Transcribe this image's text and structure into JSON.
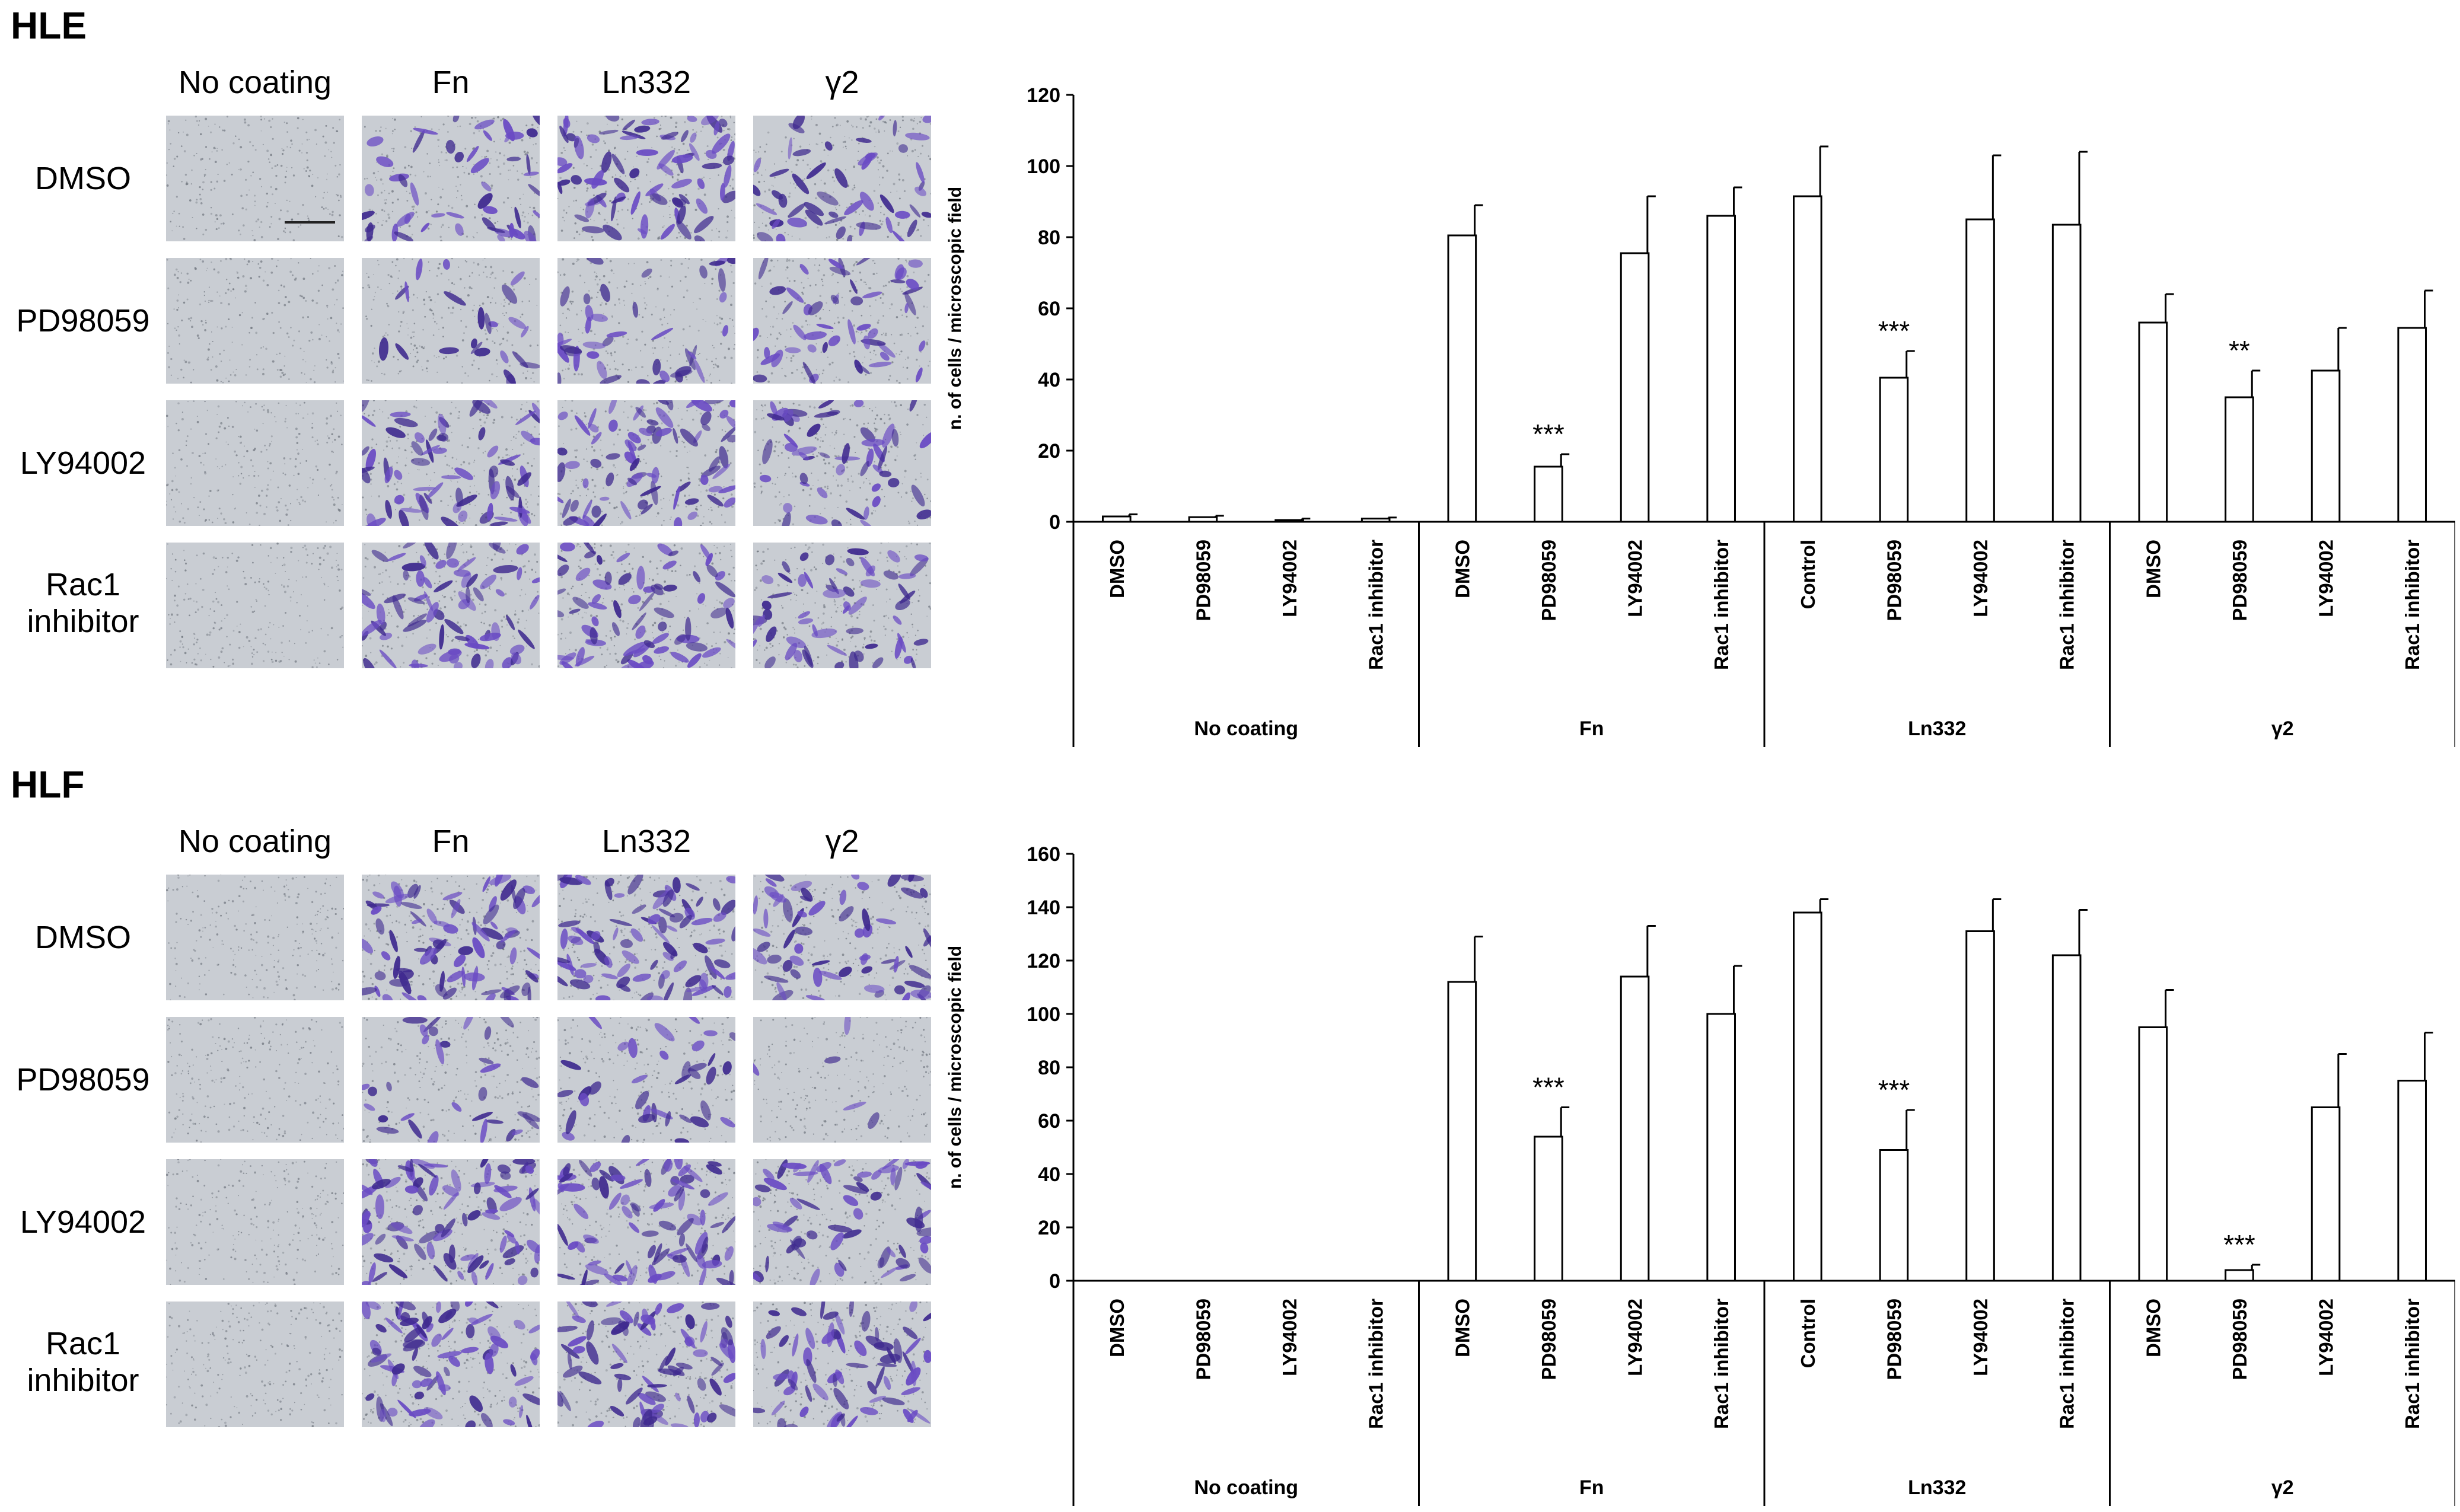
{
  "panels": [
    {
      "label": "HLE",
      "columns": [
        "No coating",
        "Fn",
        "Ln332",
        "γ2"
      ],
      "rows": [
        "DMSO",
        "PD98059",
        "LY94002",
        "Rac1\ninhibitor"
      ],
      "density": [
        [
          0.0,
          0.55,
          0.85,
          0.55
        ],
        [
          0.0,
          0.25,
          0.45,
          0.55
        ],
        [
          0.0,
          0.75,
          0.85,
          0.55
        ],
        [
          0.0,
          0.8,
          0.8,
          0.65
        ]
      ],
      "chart_data": {
        "type": "bar",
        "ylabel": "n. of cells / microscopic field",
        "ylim": [
          0,
          120
        ],
        "yticks": [
          0,
          20,
          40,
          60,
          80,
          100,
          120
        ],
        "groups": [
          {
            "name": "No coating",
            "categories": [
              "DMSO",
              "PD98059",
              "LY94002",
              "Rac1 inhibitor"
            ],
            "values": [
              1.5,
              1.3,
              0.5,
              0.9
            ],
            "errors": [
              0.6,
              0.4,
              0.4,
              0.3
            ],
            "sig": [
              "",
              "",
              "",
              ""
            ]
          },
          {
            "name": "Fn",
            "categories": [
              "DMSO",
              "PD98059",
              "LY94002",
              "Rac1 inhibitor"
            ],
            "values": [
              80.5,
              15.5,
              75.5,
              86
            ],
            "errors": [
              8.5,
              3.5,
              16,
              8
            ],
            "sig": [
              "",
              "***",
              "",
              ""
            ]
          },
          {
            "name": "Ln332",
            "categories": [
              "Control",
              "PD98059",
              "LY94002",
              "Rac1 inhibitor"
            ],
            "values": [
              91.5,
              40.5,
              85,
              83.5
            ],
            "errors": [
              14,
              7.5,
              18,
              20.5
            ],
            "sig": [
              "",
              "***",
              "",
              ""
            ]
          },
          {
            "name": "γ2",
            "categories": [
              "DMSO",
              "PD98059",
              "LY94002",
              "Rac1 inhibitor"
            ],
            "values": [
              56,
              35,
              42.5,
              54.5
            ],
            "errors": [
              8,
              7.5,
              12,
              10.5
            ],
            "sig": [
              "",
              "**",
              "",
              ""
            ]
          }
        ]
      }
    },
    {
      "label": "HLF",
      "columns": [
        "No coating",
        "Fn",
        "Ln332",
        "γ2"
      ],
      "rows": [
        "DMSO",
        "PD98059",
        "LY94002",
        "Rac1\ninhibitor"
      ],
      "density": [
        [
          0.0,
          0.9,
          0.95,
          0.7
        ],
        [
          0.0,
          0.35,
          0.4,
          0.05
        ],
        [
          0.0,
          0.95,
          0.95,
          0.7
        ],
        [
          0.0,
          0.85,
          0.9,
          0.75
        ]
      ],
      "chart_data": {
        "type": "bar",
        "ylabel": "n. of cells / microscopic field",
        "ylim": [
          0,
          160
        ],
        "yticks": [
          0,
          20,
          40,
          60,
          80,
          100,
          120,
          140,
          160
        ],
        "groups": [
          {
            "name": "No coating",
            "categories": [
              "DMSO",
              "PD98059",
              "LY94002",
              "Rac1 inhibitor"
            ],
            "values": [
              0,
              0,
              0,
              0
            ],
            "errors": [
              0,
              0,
              0,
              0
            ],
            "sig": [
              "",
              "",
              "",
              ""
            ]
          },
          {
            "name": "Fn",
            "categories": [
              "DMSO",
              "PD98059",
              "LY94002",
              "Rac1 inhibitor"
            ],
            "values": [
              112,
              54,
              114,
              100
            ],
            "errors": [
              17,
              11,
              19,
              18
            ],
            "sig": [
              "",
              "***",
              "",
              ""
            ]
          },
          {
            "name": "Ln332",
            "categories": [
              "Control",
              "PD98059",
              "LY94002",
              "Rac1 inhibitor"
            ],
            "values": [
              138,
              49,
              131,
              122
            ],
            "errors": [
              5,
              15,
              12,
              17
            ],
            "sig": [
              "",
              "***",
              "",
              ""
            ]
          },
          {
            "name": "γ2",
            "categories": [
              "DMSO",
              "PD98059",
              "LY94002",
              "Rac1 inhibitor"
            ],
            "values": [
              95,
              4,
              65,
              75
            ],
            "errors": [
              14,
              2,
              20,
              18
            ],
            "sig": [
              "",
              "***",
              "",
              ""
            ]
          }
        ]
      }
    }
  ],
  "colors": {
    "cell_stain": "#6a4bc4",
    "cell_stain_dark": "#3f2a8f",
    "membrane_bg": "#c9cdd3",
    "axis": "#000000",
    "bar_fill": "#ffffff"
  }
}
